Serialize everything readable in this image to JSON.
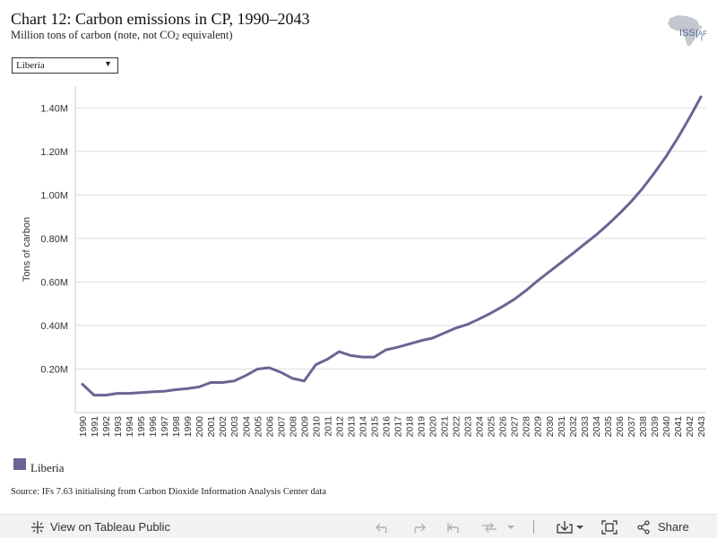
{
  "header": {
    "title": "Chart 12: Carbon emissions in CP, 1990–2043",
    "subtitle_pre": "Million tons of carbon (note, not CO",
    "subtitle_sub": "2",
    "subtitle_post": " equivalent)"
  },
  "logo": {
    "text": "ISS",
    "text_accent": "AF"
  },
  "filter": {
    "selected": "Liberia"
  },
  "legend": {
    "items": [
      {
        "label": "Liberia",
        "color": "#6b6494"
      }
    ]
  },
  "source": "Source: IFs 7.63 initialising from Carbon Dioxide Information Analysis Center data",
  "footer": {
    "view_label": "View on Tableau Public",
    "share_label": "Share"
  },
  "chart_data": {
    "type": "line",
    "title": "Chart 12: Carbon emissions in CP, 1990–2043",
    "xlabel": "",
    "ylabel": "Tons of carbon",
    "ylim": [
      0,
      1500000
    ],
    "xlim": [
      1990,
      2043
    ],
    "yticks": [
      200000,
      400000,
      600000,
      800000,
      1000000,
      1200000,
      1400000
    ],
    "ytick_labels": [
      "0.20M",
      "0.40M",
      "0.60M",
      "0.80M",
      "1.00M",
      "1.20M",
      "1.40M"
    ],
    "grid": true,
    "legend_position": "bottom-left",
    "series": [
      {
        "name": "Liberia",
        "color": "#6b6494",
        "x": [
          1990,
          1991,
          1992,
          1993,
          1994,
          1995,
          1996,
          1997,
          1998,
          1999,
          2000,
          2001,
          2002,
          2003,
          2004,
          2005,
          2006,
          2007,
          2008,
          2009,
          2010,
          2011,
          2012,
          2013,
          2014,
          2015,
          2016,
          2017,
          2018,
          2019,
          2020,
          2021,
          2022,
          2023,
          2024,
          2025,
          2026,
          2027,
          2028,
          2029,
          2030,
          2031,
          2032,
          2033,
          2034,
          2035,
          2036,
          2037,
          2038,
          2039,
          2040,
          2041,
          2042,
          2043
        ],
        "values": [
          130000,
          80000,
          80000,
          88000,
          88000,
          92000,
          95000,
          98000,
          105000,
          110000,
          118000,
          138000,
          138000,
          145000,
          170000,
          200000,
          206000,
          185000,
          157000,
          145000,
          220000,
          245000,
          280000,
          262000,
          255000,
          255000,
          288000,
          300000,
          315000,
          330000,
          342000,
          365000,
          388000,
          405000,
          430000,
          457000,
          487000,
          520000,
          560000,
          605000,
          647000,
          688000,
          730000,
          773000,
          815000,
          862000,
          913000,
          968000,
          1030000,
          1100000,
          1175000,
          1260000,
          1352000,
          1450000
        ]
      }
    ]
  }
}
